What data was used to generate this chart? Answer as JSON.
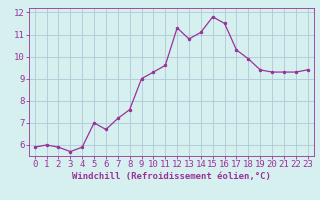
{
  "x": [
    0,
    1,
    2,
    3,
    4,
    5,
    6,
    7,
    8,
    9,
    10,
    11,
    12,
    13,
    14,
    15,
    16,
    17,
    18,
    19,
    20,
    21,
    22,
    23
  ],
  "y": [
    5.9,
    6.0,
    5.9,
    5.7,
    5.9,
    7.0,
    6.7,
    7.2,
    7.6,
    9.0,
    9.3,
    9.6,
    11.3,
    10.8,
    11.1,
    11.8,
    11.5,
    10.3,
    9.9,
    9.4,
    9.3,
    9.3,
    9.3,
    9.4
  ],
  "line_color": "#993399",
  "marker_color": "#993399",
  "bg_color": "#d6f0f0",
  "grid_color": "#b0c8d8",
  "tick_color": "#993399",
  "xlabel": "Windchill (Refroidissement éolien,°C)",
  "ylim": [
    5.5,
    12.2
  ],
  "xlim": [
    -0.5,
    23.5
  ],
  "yticks": [
    6,
    7,
    8,
    9,
    10,
    11,
    12
  ],
  "xticks": [
    0,
    1,
    2,
    3,
    4,
    5,
    6,
    7,
    8,
    9,
    10,
    11,
    12,
    13,
    14,
    15,
    16,
    17,
    18,
    19,
    20,
    21,
    22,
    23
  ],
  "font_family": "monospace",
  "font_size_label": 6.5,
  "font_size_tick": 6.5
}
